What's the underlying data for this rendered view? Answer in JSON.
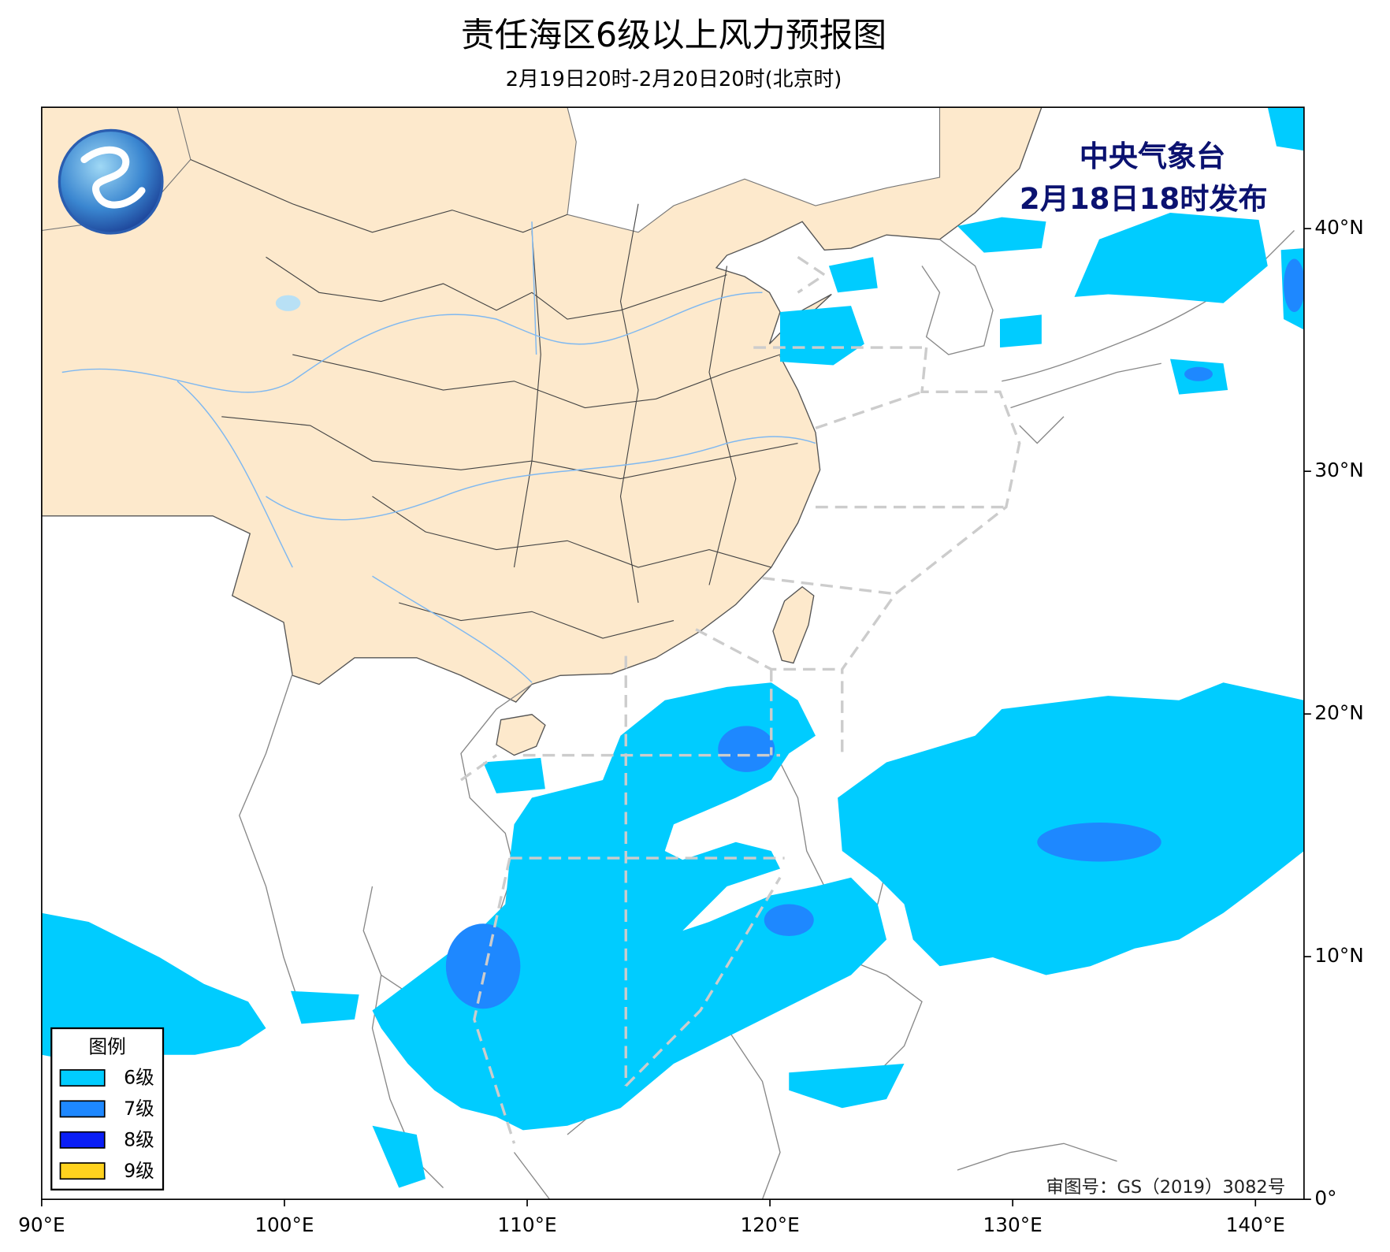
{
  "title": "责任海区6级以上风力预报图",
  "subtitle": "2月19日20时-2月20日20时(北京时)",
  "issuer": "中央气象台",
  "issue_time": "2月18日18时发布",
  "approval": "审图号：GS（2019）3082号",
  "map": {
    "xlim": [
      90,
      142
    ],
    "ylim": [
      0,
      45
    ],
    "xticks": [
      {
        "value": 90,
        "label": "90°E"
      },
      {
        "value": 100,
        "label": "100°E"
      },
      {
        "value": 110,
        "label": "110°E"
      },
      {
        "value": 120,
        "label": "120°E"
      },
      {
        "value": 130,
        "label": "130°E"
      },
      {
        "value": 140,
        "label": "140°E"
      }
    ],
    "yticks": [
      {
        "value": 0,
        "label": "0°"
      },
      {
        "value": 10,
        "label": "10°N"
      },
      {
        "value": 20,
        "label": "20°N"
      },
      {
        "value": 30,
        "label": "30°N"
      },
      {
        "value": 40,
        "label": "40°N"
      }
    ]
  },
  "legend": {
    "title": "图例",
    "items": [
      {
        "label": "6级",
        "color": "#00ccff"
      },
      {
        "label": "7级",
        "color": "#1e88ff"
      },
      {
        "label": "8级",
        "color": "#0a1ef5"
      },
      {
        "label": "9级",
        "color": "#ffd21e"
      }
    ]
  }
}
